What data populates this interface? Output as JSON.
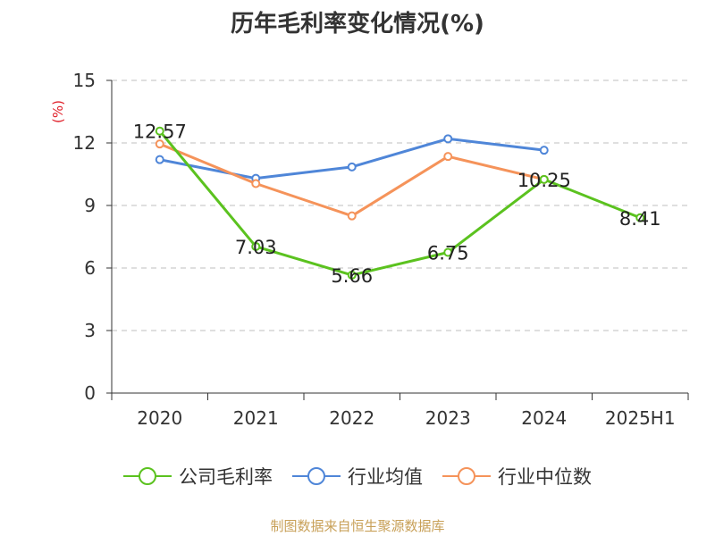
{
  "chart_data": {
    "type": "line",
    "title": "历年毛利率变化情况(%)",
    "ylabel": "(%)",
    "categories": [
      "2020",
      "2021",
      "2022",
      "2023",
      "2024",
      "2025H1"
    ],
    "ylim": [
      0,
      15
    ],
    "yticks": [
      "0",
      "3",
      "6",
      "9",
      "12",
      "15"
    ],
    "grid": true,
    "legend_position": "bottom",
    "series": [
      {
        "name": "公司毛利率",
        "color": "#5bc21f",
        "values": [
          12.57,
          7.03,
          5.66,
          6.75,
          10.25,
          8.41
        ],
        "labels": [
          "12.57",
          "7.03",
          "5.66",
          "6.75",
          "10.25",
          "8.41"
        ]
      },
      {
        "name": "行业均值",
        "color": "#4f86d8",
        "values": [
          11.2,
          10.3,
          10.85,
          12.2,
          11.65,
          null
        ]
      },
      {
        "name": "行业中位数",
        "color": "#f5935a",
        "values": [
          11.95,
          10.05,
          8.5,
          11.35,
          10.25,
          null
        ]
      }
    ]
  },
  "source": "制图数据来自恒生聚源数据库"
}
